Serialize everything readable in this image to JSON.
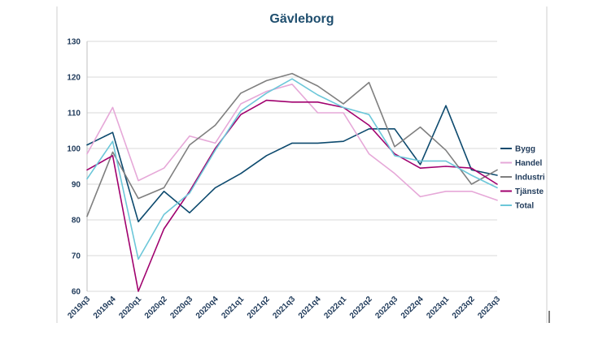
{
  "chart_data": {
    "type": "line",
    "title": "Gävleborg",
    "xlabel": "",
    "ylabel": "",
    "ylim": [
      60,
      130
    ],
    "yticks": [
      60,
      70,
      80,
      90,
      100,
      110,
      120,
      130
    ],
    "grid": "horizontal",
    "legend_position": "right",
    "categories": [
      "2019q3",
      "2019q4",
      "2020q1",
      "2020q2",
      "2020q3",
      "2020q4",
      "2021q1",
      "2021q2",
      "2021q3",
      "2021q4",
      "2022q1",
      "2022q2",
      "2022q3",
      "2022q4",
      "2023q1",
      "2023q2",
      "2023q3"
    ],
    "series": [
      {
        "name": "Bygg",
        "color": "#0d4a6e",
        "values": [
          101,
          104.5,
          79.5,
          88,
          82,
          89,
          93,
          98,
          101.5,
          101.5,
          102,
          105.5,
          105.5,
          95.5,
          112,
          94,
          92.5
        ]
      },
      {
        "name": "Handel",
        "color": "#e6a8d8",
        "values": [
          98.5,
          111.5,
          91,
          94.5,
          103.5,
          101.5,
          112.5,
          116,
          118,
          110,
          110,
          98.5,
          93,
          86.5,
          88,
          88,
          85.5
        ]
      },
      {
        "name": "Industri",
        "color": "#7f7f7f",
        "values": [
          81,
          99,
          86,
          89,
          101,
          106.5,
          115.5,
          119,
          121,
          117.5,
          112.5,
          118.5,
          100.5,
          106,
          99.5,
          90,
          94
        ]
      },
      {
        "name": "Tjänste",
        "color": "#a0006e",
        "values": [
          94,
          98,
          60,
          77.5,
          88,
          100,
          109.5,
          113.5,
          113,
          113,
          111.5,
          106.5,
          98.5,
          94.5,
          95,
          94.5,
          90
        ]
      },
      {
        "name": "Total",
        "color": "#6cc7d9",
        "values": [
          91.5,
          102,
          69,
          81.5,
          87.5,
          99.5,
          110.5,
          115.5,
          119.5,
          115,
          111.5,
          109.5,
          98,
          96.5,
          96.5,
          92.5,
          89
        ]
      }
    ]
  }
}
